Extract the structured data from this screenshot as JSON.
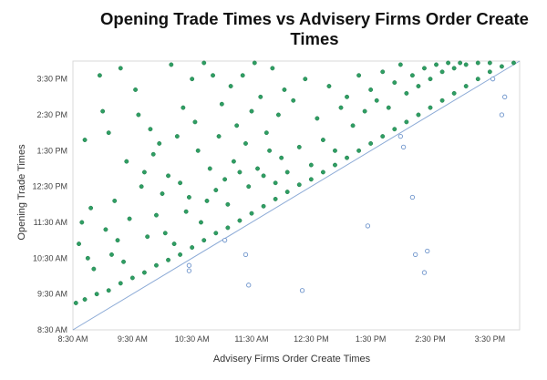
{
  "chart_data": {
    "type": "scatter",
    "title": "Opening Trade Times vs Advisery Firms Order Create Times",
    "xlabel": "Advisery Firms Order Create Times",
    "ylabel": "Opening Trade Times",
    "x_ticks": [
      "8:30 AM",
      "9:30 AM",
      "10:30 AM",
      "11:30 AM",
      "12:30 PM",
      "1:30 PM",
      "2:30 PM",
      "3:30 PM"
    ],
    "y_ticks": [
      "8:30 AM",
      "9:30 AM",
      "10:30 AM",
      "11:30 AM",
      "12:30 PM",
      "1:30 PM",
      "2:30 PM",
      "3:30 PM"
    ],
    "x_range_hours": [
      8.5,
      16.0
    ],
    "y_range_hours": [
      8.5,
      16.0
    ],
    "reference_line": {
      "type": "diagonal",
      "description": "y = x",
      "color": "#9cb8e0"
    },
    "colors": {
      "filled": "#2f9e63",
      "filled_edge": "#1d7a48",
      "hollow_edge": "#6f95cc",
      "frame": "#d9d9d9"
    },
    "series": [
      {
        "style": "filled",
        "band_points": [
          [
            8.55,
            9.25
          ],
          [
            8.7,
            9.35
          ],
          [
            8.9,
            9.5
          ],
          [
            9.1,
            9.6
          ],
          [
            9.3,
            9.8
          ],
          [
            9.5,
            9.95
          ],
          [
            9.7,
            10.1
          ],
          [
            9.9,
            10.3
          ],
          [
            10.1,
            10.45
          ],
          [
            10.3,
            10.6
          ],
          [
            10.5,
            10.8
          ],
          [
            10.7,
            11.0
          ],
          [
            10.9,
            11.2
          ],
          [
            11.1,
            11.35
          ],
          [
            11.3,
            11.55
          ],
          [
            11.5,
            11.75
          ],
          [
            11.7,
            11.95
          ],
          [
            11.9,
            12.15
          ],
          [
            12.1,
            12.35
          ],
          [
            12.3,
            12.55
          ],
          [
            12.5,
            12.7
          ],
          [
            12.7,
            12.9
          ],
          [
            12.9,
            13.1
          ],
          [
            13.1,
            13.3
          ],
          [
            13.3,
            13.5
          ],
          [
            13.5,
            13.7
          ],
          [
            13.7,
            13.9
          ],
          [
            13.9,
            14.1
          ],
          [
            14.1,
            14.3
          ],
          [
            14.3,
            14.5
          ],
          [
            14.5,
            14.7
          ],
          [
            14.7,
            14.9
          ],
          [
            14.9,
            15.1
          ],
          [
            15.1,
            15.3
          ],
          [
            15.3,
            15.5
          ],
          [
            15.5,
            15.7
          ],
          [
            15.7,
            15.85
          ],
          [
            15.9,
            16.0
          ]
        ],
        "scatter_points": [
          [
            8.6,
            10.9
          ],
          [
            8.65,
            11.5
          ],
          [
            8.7,
            13.8
          ],
          [
            8.75,
            10.5
          ],
          [
            8.8,
            11.9
          ],
          [
            8.85,
            10.2
          ],
          [
            8.95,
            15.6
          ],
          [
            9.0,
            14.6
          ],
          [
            9.05,
            11.3
          ],
          [
            9.1,
            14.0
          ],
          [
            9.15,
            10.6
          ],
          [
            9.2,
            12.1
          ],
          [
            9.25,
            11.0
          ],
          [
            9.3,
            15.8
          ],
          [
            9.35,
            10.4
          ],
          [
            9.4,
            13.2
          ],
          [
            9.45,
            11.6
          ],
          [
            9.55,
            15.2
          ],
          [
            9.6,
            14.5
          ],
          [
            9.65,
            12.5
          ],
          [
            9.7,
            12.9
          ],
          [
            9.75,
            11.1
          ],
          [
            9.8,
            14.1
          ],
          [
            9.85,
            13.4
          ],
          [
            9.9,
            11.7
          ],
          [
            9.95,
            13.7
          ],
          [
            10.0,
            12.3
          ],
          [
            10.05,
            11.2
          ],
          [
            10.1,
            12.8
          ],
          [
            10.15,
            15.9
          ],
          [
            10.2,
            10.9
          ],
          [
            10.25,
            13.9
          ],
          [
            10.3,
            12.6
          ],
          [
            10.35,
            14.7
          ],
          [
            10.4,
            11.8
          ],
          [
            10.45,
            12.2
          ],
          [
            10.5,
            15.5
          ],
          [
            10.55,
            14.3
          ],
          [
            10.6,
            13.5
          ],
          [
            10.65,
            11.5
          ],
          [
            10.7,
            16.0
          ],
          [
            10.75,
            12.1
          ],
          [
            10.8,
            13.0
          ],
          [
            10.85,
            15.6
          ],
          [
            10.9,
            12.4
          ],
          [
            10.95,
            13.9
          ],
          [
            11.0,
            14.8
          ],
          [
            11.05,
            12.7
          ],
          [
            11.1,
            12.0
          ],
          [
            11.15,
            15.3
          ],
          [
            11.2,
            13.2
          ],
          [
            11.25,
            14.2
          ],
          [
            11.3,
            12.9
          ],
          [
            11.35,
            15.6
          ],
          [
            11.4,
            13.7
          ],
          [
            11.45,
            12.5
          ],
          [
            11.5,
            14.6
          ],
          [
            11.55,
            16.05
          ],
          [
            11.6,
            13.0
          ],
          [
            11.65,
            15.0
          ],
          [
            11.7,
            12.8
          ],
          [
            11.75,
            14.0
          ],
          [
            11.8,
            13.5
          ],
          [
            11.85,
            15.8
          ],
          [
            11.9,
            12.6
          ],
          [
            11.95,
            14.5
          ],
          [
            12.0,
            13.3
          ],
          [
            12.05,
            15.2
          ],
          [
            12.1,
            12.9
          ],
          [
            12.2,
            14.9
          ],
          [
            12.3,
            13.6
          ],
          [
            12.4,
            15.5
          ],
          [
            12.5,
            13.1
          ],
          [
            12.6,
            14.4
          ],
          [
            12.7,
            13.8
          ],
          [
            12.8,
            15.3
          ],
          [
            12.9,
            13.5
          ],
          [
            13.0,
            14.7
          ],
          [
            13.1,
            15.0
          ],
          [
            13.2,
            14.2
          ],
          [
            13.3,
            15.6
          ],
          [
            13.4,
            14.6
          ],
          [
            13.5,
            15.2
          ],
          [
            13.6,
            14.9
          ],
          [
            13.7,
            15.7
          ],
          [
            13.8,
            14.7
          ],
          [
            13.9,
            15.4
          ],
          [
            14.0,
            15.9
          ],
          [
            14.1,
            15.1
          ],
          [
            14.2,
            15.6
          ],
          [
            14.3,
            15.3
          ],
          [
            14.4,
            15.8
          ],
          [
            14.5,
            15.5
          ],
          [
            14.6,
            15.9
          ],
          [
            14.7,
            15.7
          ],
          [
            14.8,
            15.95
          ],
          [
            14.9,
            15.8
          ],
          [
            15.0,
            16.0
          ],
          [
            15.1,
            15.9
          ],
          [
            15.3,
            16.0
          ],
          [
            15.5,
            16.0
          ]
        ]
      },
      {
        "style": "hollow",
        "points": [
          [
            10.45,
            10.15
          ],
          [
            10.45,
            10.3
          ],
          [
            11.05,
            11.0
          ],
          [
            11.4,
            10.6
          ],
          [
            11.45,
            9.75
          ],
          [
            12.35,
            9.6
          ],
          [
            13.45,
            11.4
          ],
          [
            14.0,
            13.9
          ],
          [
            14.05,
            13.6
          ],
          [
            14.2,
            12.2
          ],
          [
            14.25,
            10.6
          ],
          [
            14.4,
            10.1
          ],
          [
            14.45,
            10.7
          ],
          [
            15.55,
            15.5
          ],
          [
            15.7,
            14.5
          ],
          [
            15.75,
            15.0
          ]
        ]
      }
    ]
  }
}
